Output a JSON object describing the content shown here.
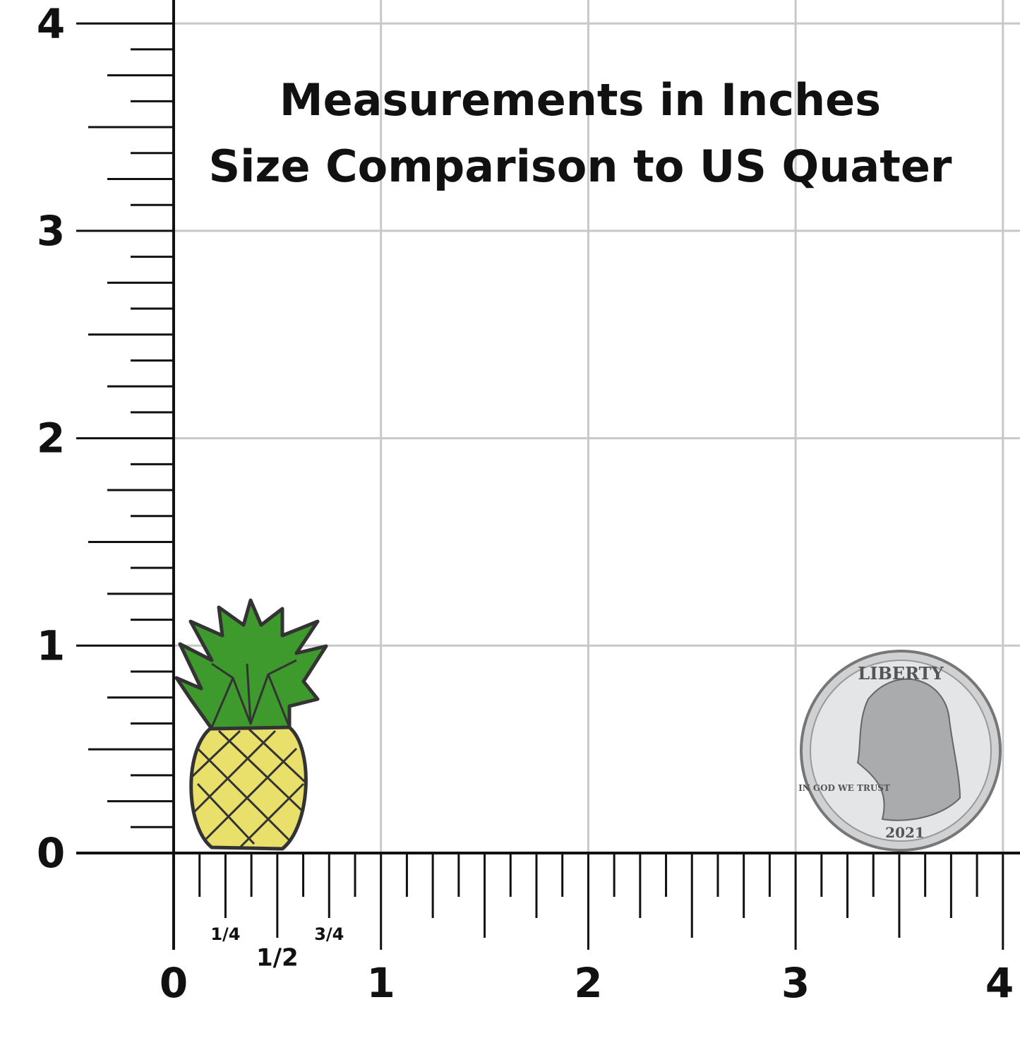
{
  "header": {
    "title": "Measurements in Inches",
    "subtitle": "Size Comparison to US Quater"
  },
  "ruler": {
    "vertical_labels": [
      "0",
      "1",
      "2",
      "3",
      "4"
    ],
    "horizontal_labels": [
      "0",
      "1",
      "2",
      "3",
      "4"
    ],
    "fraction_labels": [
      "1/4",
      "1/2",
      "3/4"
    ]
  },
  "coin": {
    "motto_top": "LIBERTY",
    "motto_left": "IN GOD WE TRUST",
    "year": "2021"
  }
}
